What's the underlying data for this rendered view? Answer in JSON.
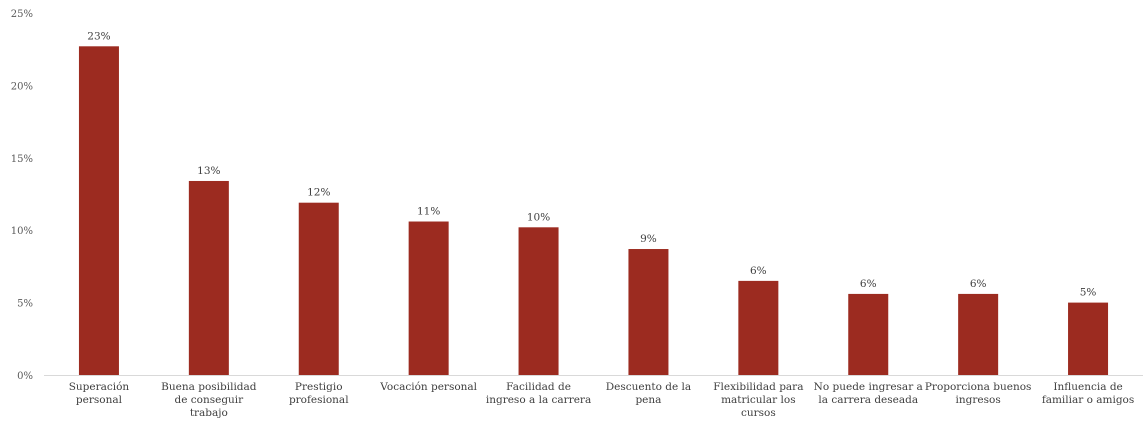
{
  "chart_data": {
    "type": "bar",
    "title": "",
    "xlabel": "",
    "ylabel": "",
    "ylim": [
      0,
      0.25
    ],
    "yticks": [
      "0%",
      "5%",
      "10%",
      "15%",
      "20%",
      "25%"
    ],
    "grid": false,
    "legend": "none",
    "bar_color": "#9C2B20",
    "categories": [
      [
        "Superación",
        "personal"
      ],
      [
        "Buena posibilidad",
        "de conseguir",
        "trabajo"
      ],
      [
        "Prestigio",
        "profesional"
      ],
      [
        "Vocación personal"
      ],
      [
        "Facilidad de",
        "ingreso a la carrera"
      ],
      [
        "Descuento de la",
        "pena"
      ],
      [
        "Flexibilidad para",
        "matricular los",
        "cursos"
      ],
      [
        "No puede ingresar a",
        "la carrera deseada"
      ],
      [
        "Proporciona buenos",
        "ingresos"
      ],
      [
        "Influencia de",
        "familiar o amigos"
      ]
    ],
    "values": [
      0.227,
      0.134,
      0.119,
      0.106,
      0.102,
      0.087,
      0.065,
      0.056,
      0.056,
      0.05
    ],
    "data_labels": [
      "23%",
      "13%",
      "12%",
      "11%",
      "10%",
      "9%",
      "6%",
      "6%",
      "6%",
      "5%"
    ]
  }
}
